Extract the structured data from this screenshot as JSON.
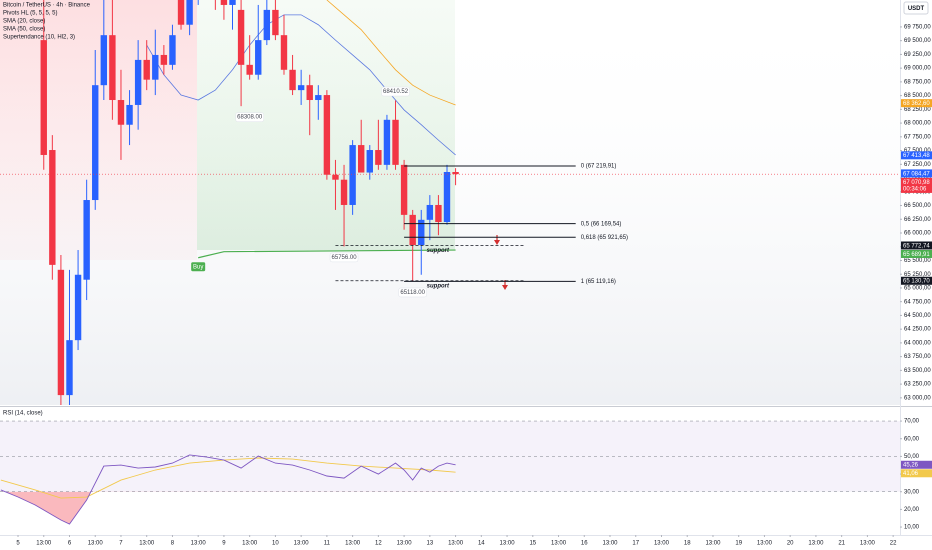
{
  "chart_data": [
    {
      "type": "candlestick",
      "title": "Bitcoin / TetherUS · 4h · Binance",
      "pivots_name": "Pivots HL (5, 5, 5, 5)",
      "currency": "USDT",
      "up_color": "#2962ff",
      "down_color": "#f23645",
      "x": [
        3,
        4,
        5,
        6,
        7,
        8,
        9,
        10,
        11,
        12,
        13,
        14,
        15,
        16,
        17,
        18,
        19,
        20,
        21,
        22,
        23,
        24,
        25,
        26,
        27,
        28,
        29,
        30,
        31,
        32,
        33,
        34,
        35,
        36,
        37,
        38,
        39,
        40,
        41,
        42,
        43,
        44,
        45,
        46,
        47,
        48,
        49,
        50,
        51
      ],
      "open": [
        69510,
        67510,
        65330,
        63050,
        64050,
        65150,
        66600,
        68690,
        69600,
        68420,
        67970,
        68330,
        69150,
        68790,
        69240,
        69060,
        70240,
        69790,
        70420,
        70600,
        70790,
        70420,
        70150,
        70060,
        69060,
        68880,
        69510,
        70060,
        69600,
        68970,
        68600,
        68690,
        68420,
        68510,
        67060,
        66970,
        66510,
        67600,
        67100,
        67510,
        67240,
        68060,
        67240,
        66330,
        65780,
        66240,
        66510,
        66200,
        67110
      ],
      "high": [
        70240,
        67780,
        65600,
        65330,
        65690,
        66970,
        69330,
        70240,
        70240,
        68970,
        68600,
        69510,
        69510,
        69700,
        69420,
        69790,
        70600,
        70790,
        70970,
        71150,
        70970,
        70790,
        70510,
        70330,
        69600,
        70150,
        70240,
        70330,
        69970,
        69240,
        68970,
        68880,
        68690,
        68600,
        67330,
        67240,
        67690,
        68060,
        67600,
        68060,
        68150,
        68410.52,
        67330,
        66420,
        66420,
        66690,
        66690,
        67240,
        67180
      ],
      "low": [
        67150,
        65150,
        62870,
        62870,
        63870,
        64780,
        66420,
        68420,
        68060,
        67330,
        67600,
        67880,
        68600,
        68510,
        68880,
        68970,
        69700,
        69600,
        70150,
        70240,
        70060,
        69880,
        69700,
        68308,
        68790,
        68790,
        69420,
        69510,
        68880,
        68510,
        68330,
        67780,
        68060,
        66970,
        66420,
        65756,
        66330,
        67150,
        66970,
        67150,
        67150,
        67150,
        66060,
        65118,
        65240,
        65870,
        65960,
        66150,
        66870
      ],
      "close": [
        67420,
        65420,
        63050,
        64050,
        65240,
        66600,
        68690,
        69600,
        68420,
        67970,
        68330,
        69150,
        68790,
        69240,
        69060,
        69600,
        69790,
        70420,
        70600,
        70790,
        70420,
        70150,
        70330,
        69060,
        68880,
        69510,
        70060,
        69600,
        68970,
        68600,
        68690,
        68420,
        68510,
        67060,
        66970,
        66510,
        67600,
        67100,
        67510,
        67240,
        68060,
        67240,
        66330,
        65780,
        66240,
        66510,
        66200,
        67110,
        67070.98
      ],
      "xlim": [
        -2.1,
        102.8
      ],
      "ylim": [
        62870,
        70240
      ],
      "yticks": [
        {
          "value": 69750,
          "label": "69 750,00"
        },
        {
          "value": 69500,
          "label": "69 500,00"
        },
        {
          "value": 69250,
          "label": "69 250,00"
        },
        {
          "value": 69000,
          "label": "69 000,00"
        },
        {
          "value": 68750,
          "label": "68 750,00"
        },
        {
          "value": 68500,
          "label": "68 500,00"
        },
        {
          "value": 68250,
          "label": "68 250,00"
        },
        {
          "value": 68000,
          "label": "68 000,00"
        },
        {
          "value": 67750,
          "label": "67 750,00"
        },
        {
          "value": 67500,
          "label": "67 500,00"
        },
        {
          "value": 67250,
          "label": "67 250,00"
        },
        {
          "value": 67000,
          "label": "67 000,00"
        },
        {
          "value": 66750,
          "label": "66 750,00"
        },
        {
          "value": 66500,
          "label": "66 500,00"
        },
        {
          "value": 66250,
          "label": "66 250,00"
        },
        {
          "value": 66000,
          "label": "66 000,00"
        },
        {
          "value": 65750,
          "label": "65 750,00"
        },
        {
          "value": 65500,
          "label": "65 500,00"
        },
        {
          "value": 65250,
          "label": "65 250,00"
        },
        {
          "value": 65000,
          "label": "65 000,00"
        },
        {
          "value": 64750,
          "label": "64 750,00"
        },
        {
          "value": 64500,
          "label": "64 500,00"
        },
        {
          "value": 64250,
          "label": "64 250,00"
        },
        {
          "value": 64000,
          "label": "64 000,00"
        },
        {
          "value": 63750,
          "label": "63 750,00"
        },
        {
          "value": 63500,
          "label": "63 500,00"
        },
        {
          "value": 63250,
          "label": "63 250,00"
        },
        {
          "value": 63000,
          "label": "63 000,00"
        }
      ],
      "series": [
        {
          "name": "SMA (20, close)",
          "color": "#5b78e0",
          "x": [
            15,
            17,
            19,
            21,
            23,
            25,
            27,
            29,
            31,
            33,
            35,
            37,
            39,
            41,
            43,
            45,
            47,
            49,
            51
          ],
          "values": [
            69420,
            68880,
            68510,
            68420,
            68600,
            68970,
            69420,
            69790,
            69970,
            69970,
            69790,
            69510,
            69240,
            68970,
            68600,
            68240,
            67970,
            67690,
            67420
          ]
        },
        {
          "name": "SMA (50, close)",
          "color": "#f5a623",
          "x": [
            36,
            38,
            40,
            42,
            44,
            46,
            48,
            51
          ],
          "values": [
            70240,
            69970,
            69700,
            69330,
            68970,
            68690,
            68510,
            68330
          ]
        },
        {
          "name": "Supertendance (10, Hl2, 3)",
          "color": "#4caf50",
          "x": [
            21,
            24,
            51
          ],
          "values": [
            65550,
            65660,
            65689.91
          ]
        }
      ],
      "pivots": [
        {
          "x": 44,
          "value": 68410.52,
          "label": "68410.52",
          "position": "above"
        },
        {
          "x": 27,
          "value": 68308,
          "label": "68308.00",
          "position": "below"
        },
        {
          "x": 38,
          "value": 65756,
          "label": "65756.00",
          "position": "below"
        },
        {
          "x": 46,
          "value": 65118,
          "label": "65118.00",
          "position": "below"
        }
      ],
      "signal": {
        "x": 21,
        "value": 65550,
        "label": "Buy",
        "color": "#4caf50"
      },
      "fib_x": [
        45,
        65
      ],
      "fib": [
        {
          "value": 67219.91,
          "label": "0 (67 219,91)"
        },
        {
          "value": 66169.54,
          "label": "0,5 (66 169,54)"
        },
        {
          "value": 65921.65,
          "label": "0,618 (65 921,65)"
        },
        {
          "value": 65119.16,
          "label": "1 (65 119,16)"
        }
      ],
      "support_x": [
        37,
        59
      ],
      "supports": [
        {
          "value": 65772.74,
          "label": "support",
          "axis_label": "65 772,74"
        },
        {
          "value": 65130.7,
          "label": "support",
          "axis_label": "65 130,70"
        }
      ],
      "price_labels": [
        {
          "value": 68362.6,
          "label": "68 362,60",
          "color": "#f5a623"
        },
        {
          "value": 67413.48,
          "label": "67 413,48",
          "color": "#2962ff"
        },
        {
          "value": 67084.47,
          "label": "67 084,47",
          "color": "#2962ff"
        },
        {
          "value": 67070.98,
          "label": "67 070,98",
          "sublabel": "00:34:06",
          "color": "#f23645"
        },
        {
          "value": 65689.91,
          "label": "65 689,91",
          "color": "#4caf50"
        }
      ]
    },
    {
      "type": "line",
      "title": "RSI (14, close)",
      "xlim": [
        -2.1,
        102.8
      ],
      "ylim": [
        5.5,
        77.4
      ],
      "yticks": [
        {
          "value": 70,
          "label": "70,00"
        },
        {
          "value": 60,
          "label": "60,00"
        },
        {
          "value": 50,
          "label": "50,00"
        },
        {
          "value": 40,
          "label": "40,00"
        },
        {
          "value": 30,
          "label": "30,00"
        },
        {
          "value": 20,
          "label": "20,00"
        },
        {
          "value": 10,
          "label": "10,00"
        }
      ],
      "levels": [
        70,
        50,
        30
      ],
      "series": [
        {
          "color": "#7e57c2",
          "x": [
            -2,
            0,
            2,
            4,
            5,
            6,
            8,
            10,
            12,
            14,
            16,
            18,
            20,
            22,
            24,
            26,
            28,
            30,
            32,
            34,
            36,
            38,
            40,
            42,
            44,
            45,
            46,
            47,
            48,
            49,
            50,
            51
          ],
          "values": [
            31.0,
            27.0,
            22.5,
            16.8,
            14.0,
            11.7,
            25.3,
            44.5,
            45.1,
            43.4,
            44.0,
            46.2,
            50.8,
            49.6,
            47.9,
            43.4,
            50.2,
            46.2,
            45.1,
            42.3,
            38.9,
            37.7,
            44.5,
            40.0,
            46.2,
            42.3,
            36.6,
            43.4,
            41.1,
            44.5,
            46.2,
            45.26
          ]
        },
        {
          "color": "#f2c94c",
          "x": [
            -2,
            2,
            5,
            8,
            12,
            16,
            20,
            24,
            28,
            32,
            36,
            40,
            44,
            48,
            51
          ],
          "values": [
            36.6,
            31.0,
            26.4,
            27.0,
            36.6,
            42.3,
            46.2,
            47.9,
            49.1,
            48.5,
            46.2,
            44.5,
            43.4,
            42.3,
            41.06
          ]
        }
      ],
      "price_labels": [
        {
          "value": 45.26,
          "label": "45,26",
          "color": "#7e57c2"
        },
        {
          "value": 41.06,
          "label": "41,06",
          "color": "#f2c94c"
        }
      ],
      "xticks": [
        {
          "value": 0,
          "label": "5"
        },
        {
          "value": 3,
          "label": "13:00"
        },
        {
          "value": 6,
          "label": "6"
        },
        {
          "value": 9,
          "label": "13:00"
        },
        {
          "value": 12,
          "label": "7"
        },
        {
          "value": 15,
          "label": "13:00"
        },
        {
          "value": 18,
          "label": "8"
        },
        {
          "value": 21,
          "label": "13:00"
        },
        {
          "value": 24,
          "label": "9"
        },
        {
          "value": 27,
          "label": "13:00"
        },
        {
          "value": 30,
          "label": "10"
        },
        {
          "value": 33,
          "label": "13:00"
        },
        {
          "value": 36,
          "label": "11"
        },
        {
          "value": 39,
          "label": "13:00"
        },
        {
          "value": 42,
          "label": "12"
        },
        {
          "value": 45,
          "label": "13:00"
        },
        {
          "value": 48,
          "label": "13"
        },
        {
          "value": 51,
          "label": "13:00"
        },
        {
          "value": 54,
          "label": "14"
        },
        {
          "value": 57,
          "label": "13:00"
        },
        {
          "value": 60,
          "label": "15"
        },
        {
          "value": 63,
          "label": "13:00"
        },
        {
          "value": 66,
          "label": "16"
        },
        {
          "value": 69,
          "label": "13:00"
        },
        {
          "value": 72,
          "label": "17"
        },
        {
          "value": 75,
          "label": "13:00"
        },
        {
          "value": 78,
          "label": "18"
        },
        {
          "value": 81,
          "label": "13:00"
        },
        {
          "value": 84,
          "label": "19"
        },
        {
          "value": 87,
          "label": "13:00"
        },
        {
          "value": 90,
          "label": "20"
        },
        {
          "value": 93,
          "label": "13:00"
        },
        {
          "value": 96,
          "label": "21"
        },
        {
          "value": 99,
          "label": "13:00"
        },
        {
          "value": 102,
          "label": "22"
        }
      ]
    }
  ]
}
